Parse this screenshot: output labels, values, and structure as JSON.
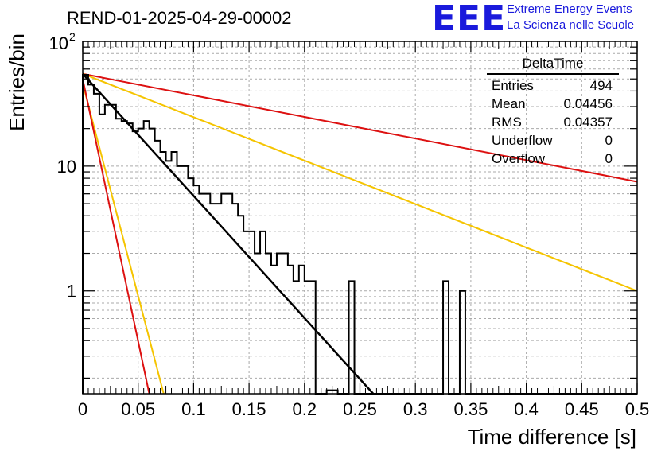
{
  "header": {
    "title": "REND-01-2025-04-29-00002",
    "logo": "EEE",
    "logo_line1": "Extreme Energy Events",
    "logo_line2": "La Scienza nelle Scuole"
  },
  "stats_box": {
    "name": "DeltaTime",
    "rows": [
      {
        "label": "Entries",
        "value": "494"
      },
      {
        "label": "Mean",
        "value": "0.04456"
      },
      {
        "label": "RMS",
        "value": "0.04357"
      },
      {
        "label": "Underflow",
        "value": "0"
      },
      {
        "label": "Overflow",
        "value": "0"
      }
    ]
  },
  "colors": {
    "histogram": "#000000",
    "fit": "#000000",
    "band_outer": "#dd1111",
    "band_inner": "#f5c400",
    "grid": "#aaaaaa"
  },
  "chart_data": {
    "type": "histogram",
    "xlabel": "Time difference [s]",
    "ylabel": "Entries/bin",
    "xlim": [
      0,
      0.5
    ],
    "ylim": [
      0.15,
      100
    ],
    "yscale": "log",
    "grid": true,
    "x_ticks": [
      "0",
      "0.05",
      "0.1",
      "0.15",
      "0.2",
      "0.25",
      "0.3",
      "0.35",
      "0.4",
      "0.45",
      "0.5"
    ],
    "y_ticks": [
      "1",
      "10",
      "10^2"
    ],
    "bin_width": 0.005,
    "bin_start": 0,
    "counts": [
      54,
      45,
      38,
      26,
      31,
      31,
      24,
      23,
      22,
      19,
      20,
      23,
      20,
      16,
      13,
      11,
      13,
      10,
      10,
      8,
      7,
      6,
      6,
      5,
      5,
      6,
      6,
      5,
      4,
      3,
      3,
      2,
      3,
      2,
      1.6,
      2,
      2,
      1.6,
      1.2,
      1.6,
      1.2,
      1.2,
      0,
      0,
      0.16,
      0.16,
      0,
      0,
      1.2,
      0,
      0,
      0,
      0,
      0,
      0,
      0,
      0,
      0,
      0,
      0,
      0,
      0,
      0,
      0,
      0,
      1.2,
      0,
      0,
      1,
      0,
      0,
      0,
      0,
      0,
      0,
      0,
      0,
      0,
      0,
      0,
      0,
      0,
      0,
      0,
      0,
      0,
      0,
      0,
      0,
      0,
      0,
      0,
      0,
      0,
      0,
      0,
      0,
      0,
      0,
      0
    ],
    "fit": {
      "name": "exponential fit",
      "x": [
        0,
        0.262
      ],
      "y": [
        55,
        0.15
      ]
    },
    "curves": [
      {
        "name": "band-outer-upper",
        "color": "red",
        "x": [
          0,
          0.5
        ],
        "y": [
          55,
          7.5
        ]
      },
      {
        "name": "band-inner-upper",
        "color": "yellow",
        "x": [
          0,
          0.5
        ],
        "y": [
          55,
          1
        ]
      },
      {
        "name": "band-inner-lower",
        "color": "yellow",
        "x": [
          0,
          0.073
        ],
        "y": [
          46,
          0.15
        ]
      },
      {
        "name": "band-outer-lower",
        "color": "red",
        "x": [
          0,
          0.06
        ],
        "y": [
          50,
          0.15
        ]
      }
    ]
  }
}
